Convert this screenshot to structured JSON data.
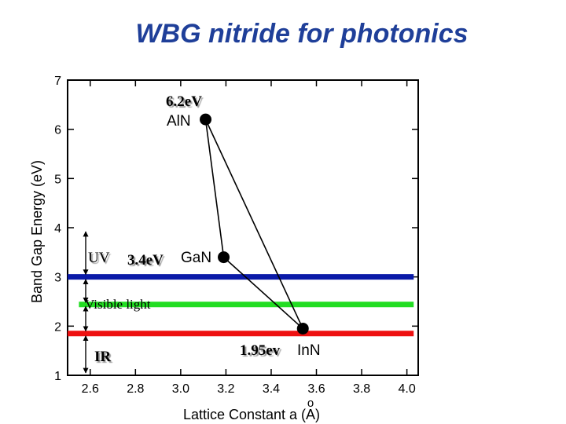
{
  "chart_data": {
    "type": "scatter",
    "title": "WBG nitride for photonics",
    "xlabel": "Lattice Constant  a (A)",
    "xlabel_ring": "o",
    "ylabel": "Band Gap Energy (eV)",
    "xlim": [
      2.5,
      4.05
    ],
    "ylim": [
      1,
      7
    ],
    "xticks": [
      2.6,
      2.8,
      3.0,
      3.2,
      3.4,
      3.6,
      3.8,
      4.0
    ],
    "xtick_labels": [
      "2.6",
      "2.8",
      "3.0",
      "3.2",
      "3.4",
      "3.6",
      "3.8",
      "4.0"
    ],
    "yticks": [
      1,
      2,
      3,
      4,
      5,
      6,
      7
    ],
    "ytick_labels": [
      "1",
      "2",
      "3",
      "4",
      "5",
      "6",
      "7"
    ],
    "points": [
      {
        "name": "AlN",
        "label": "AlN",
        "energy_label": "6.2eV",
        "x": 3.11,
        "y": 6.2,
        "color": "#000000"
      },
      {
        "name": "GaN",
        "label": "GaN",
        "energy_label": "3.4eV",
        "x": 3.19,
        "y": 3.4,
        "color": "#000000"
      },
      {
        "name": "InN",
        "label": "InN",
        "energy_label": "1.95ev",
        "x": 3.54,
        "y": 1.95,
        "color": "#000000"
      }
    ],
    "lines": [
      {
        "name": "AlN-GaN",
        "from": "AlN",
        "to": "GaN"
      },
      {
        "name": "GaN-InN",
        "from": "GaN",
        "to": "InN"
      },
      {
        "name": "AlN-InN",
        "from": "AlN",
        "to": "InN"
      }
    ],
    "bands": [
      {
        "name": "uv-edge",
        "y": 3.0,
        "color": "#0a1aa8",
        "x_start": 2.5,
        "x_end": 4.03
      },
      {
        "name": "visible-edge",
        "y": 2.44,
        "color": "#22dd22",
        "x_start": 2.55,
        "x_end": 4.03
      },
      {
        "name": "ir-edge",
        "y": 1.85,
        "color": "#ee1111",
        "x_start": 2.5,
        "x_end": 4.03
      }
    ],
    "region_labels": [
      {
        "name": "uv",
        "text": "UV",
        "x": 2.59,
        "y": 3.45
      },
      {
        "name": "visible",
        "text": "Visible light",
        "x": 2.58,
        "y": 2.44
      },
      {
        "name": "ir",
        "text": "IR",
        "x": 2.62,
        "y": 1.55
      }
    ]
  }
}
